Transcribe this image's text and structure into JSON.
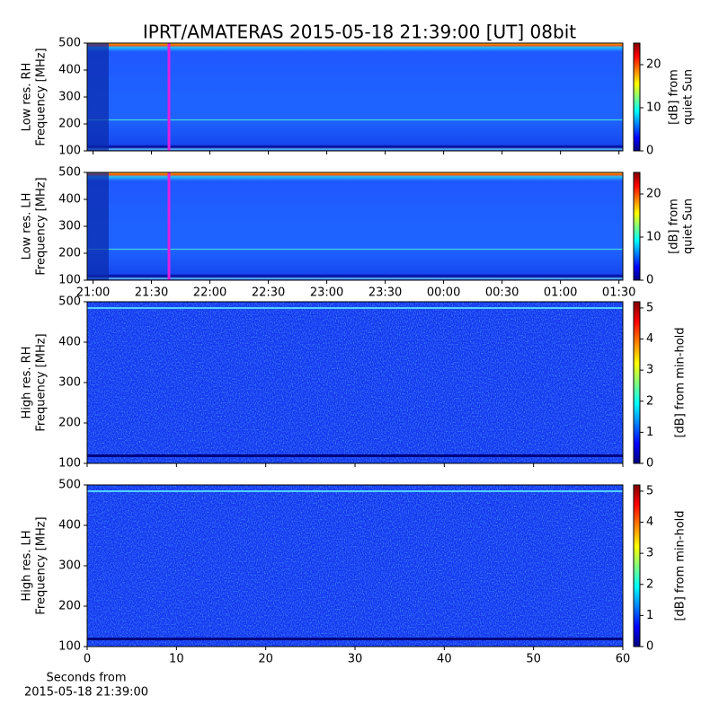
{
  "title": "IPRT/AMATERAS 2015-05-18 21:39:00 [UT]   08bit",
  "chart_data": [
    {
      "type": "spectrogram",
      "ylabel": [
        "Low res. RH",
        "Frequency [MHz]"
      ],
      "ylim": [
        100,
        500
      ],
      "yticks": [
        100,
        200,
        300,
        400,
        500
      ],
      "xlim": [
        "20:57",
        "01:32"
      ],
      "cursor": "21:39",
      "clabel": [
        "[dB] from",
        "quiet Sun"
      ],
      "clim": [
        0,
        25
      ],
      "cticks": [
        0,
        10,
        20
      ]
    },
    {
      "type": "spectrogram",
      "ylabel": [
        "Low res. LH",
        "Frequency [MHz]"
      ],
      "ylim": [
        100,
        500
      ],
      "yticks": [
        100,
        200,
        300,
        400,
        500
      ],
      "xlim": [
        "20:57",
        "01:32"
      ],
      "xticks": [
        "21:00",
        "21:30",
        "22:00",
        "22:30",
        "23:00",
        "23:30",
        "00:00",
        "00:30",
        "01:00",
        "01:30"
      ],
      "cursor": "21:39",
      "clabel": [
        "[dB] from",
        "quiet Sun"
      ],
      "clim": [
        0,
        25
      ],
      "cticks": [
        0,
        10,
        20
      ]
    },
    {
      "type": "spectrogram",
      "ylabel": [
        "High res. RH",
        "Frequency [MHz]"
      ],
      "ylim": [
        100,
        500
      ],
      "yticks": [
        100,
        200,
        300,
        400,
        500
      ],
      "xlim": [
        0,
        60
      ],
      "clabel": [
        "[dB] from min-hold"
      ],
      "clim": [
        0,
        5.2
      ],
      "cticks": [
        0,
        1,
        2,
        3,
        4,
        5
      ]
    },
    {
      "type": "spectrogram",
      "ylabel": [
        "High res. LH",
        "Frequency [MHz]"
      ],
      "ylim": [
        100,
        500
      ],
      "yticks": [
        100,
        200,
        300,
        400,
        500
      ],
      "xlim": [
        0,
        60
      ],
      "xticks": [
        0,
        10,
        20,
        30,
        40,
        50,
        60
      ],
      "xlabel": [
        "Seconds from",
        "2015-05-18 21:39:00"
      ],
      "clabel": [
        "[dB] from min-hold"
      ],
      "clim": [
        0,
        5.2
      ],
      "cticks": [
        0,
        1,
        2,
        3,
        4,
        5
      ]
    }
  ]
}
